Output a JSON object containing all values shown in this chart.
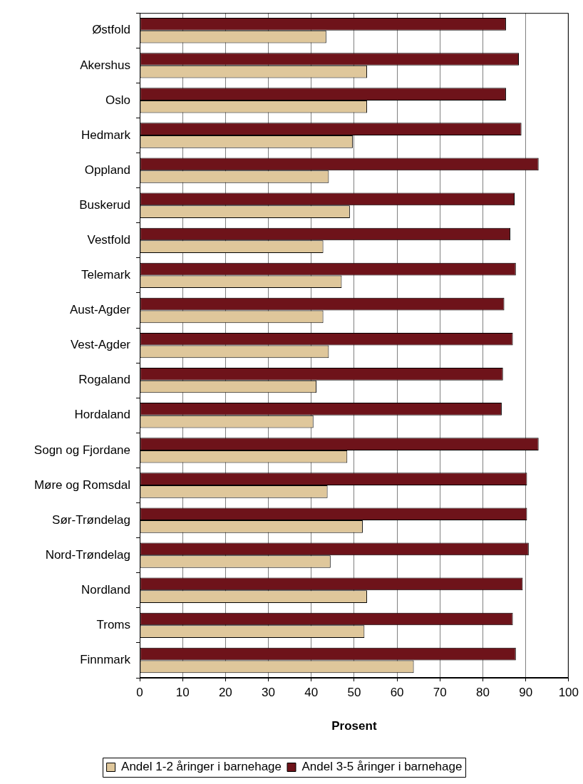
{
  "chart_data": {
    "type": "bar",
    "orientation": "horizontal",
    "xlabel": "Prosent",
    "categories": [
      "Østfold",
      "Akershus",
      "Oslo",
      "Hedmark",
      "Oppland",
      "Buskerud",
      "Vestfold",
      "Telemark",
      "Aust-Agder",
      "Vest-Agder",
      "Rogaland",
      "Hordaland",
      "Sogn og Fjordane",
      "Møre og Romsdal",
      "Sør-Trøndelag",
      "Nord-Trøndelag",
      "Nordland",
      "Troms",
      "Finnmark"
    ],
    "series": [
      {
        "name": "Andel 1-2 åringer i barnehage",
        "color": "#dfc79b",
        "values": [
          43.5,
          53.0,
          53.0,
          49.7,
          44.1,
          49.0,
          42.8,
          47.1,
          42.8,
          44.1,
          41.2,
          40.5,
          48.4,
          43.8,
          52.0,
          44.5,
          53.0,
          52.4,
          63.9
        ]
      },
      {
        "name": "Andel 3-5 åringer i barnehage",
        "color": "#6e131a",
        "values": [
          85.4,
          88.4,
          85.4,
          89.0,
          93.0,
          87.4,
          86.4,
          87.7,
          85.0,
          87.0,
          84.7,
          84.4,
          93.0,
          90.3,
          90.3,
          90.7,
          89.3,
          87.0,
          87.7
        ]
      }
    ],
    "xlim": [
      0,
      100
    ],
    "xticks": [
      0,
      10,
      20,
      30,
      40,
      50,
      60,
      70,
      80,
      90,
      100
    ],
    "grid": "x",
    "legend": "bottom"
  }
}
